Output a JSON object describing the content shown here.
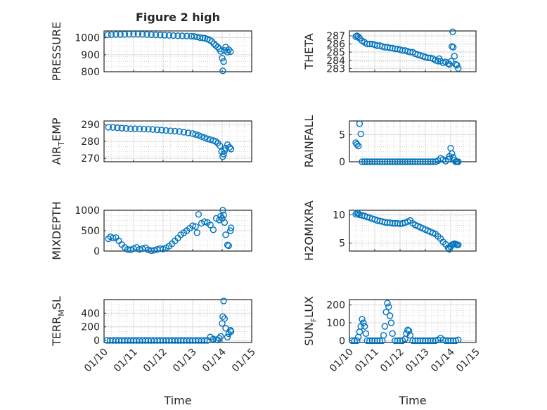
{
  "figure_title": "Figure 2 high",
  "colors": {
    "marker": "#0072BD",
    "axis": "#262626",
    "grid": "#dcdcdc",
    "minor_grid": "#bdbdbd"
  },
  "chart_data": [
    {
      "type": "scatter",
      "panel": "pressure",
      "title": "Figure 2 high",
      "ylabel": "PRESSURE",
      "xlabel": "",
      "ylim": [
        800,
        1040
      ],
      "yticks": [
        800,
        900,
        1000
      ],
      "xlim": [
        0,
        5
      ],
      "x": [
        0.12,
        0.25,
        0.4,
        0.55,
        0.7,
        0.85,
        1.0,
        1.15,
        1.3,
        1.45,
        1.6,
        1.75,
        1.9,
        2.05,
        2.2,
        2.35,
        2.5,
        2.65,
        2.8,
        2.95,
        3.05,
        3.15,
        3.25,
        3.35,
        3.42,
        3.5,
        3.58,
        3.65,
        3.72,
        3.78,
        3.85,
        3.9,
        3.95,
        4.0,
        4.02,
        4.05,
        4.08,
        4.12,
        4.18,
        4.22,
        4.28
      ],
      "y": [
        1018,
        1018,
        1019,
        1019,
        1020,
        1021,
        1021,
        1021,
        1020,
        1019,
        1018,
        1017,
        1016,
        1015,
        1014,
        1013,
        1012,
        1011,
        1010,
        1009,
        1008,
        1005,
        1001,
        999,
        997,
        992,
        986,
        978,
        965,
        955,
        945,
        935,
        920,
        880,
        805,
        860,
        925,
        945,
        915,
        930,
        918
      ]
    },
    {
      "type": "scatter",
      "panel": "theta",
      "ylabel": "THETA",
      "xlabel": "",
      "ylim": [
        282.6,
        287.6
      ],
      "yticks": [
        283,
        284,
        285,
        286,
        287
      ],
      "xlim": [
        0,
        5
      ],
      "x": [
        0.25,
        0.3,
        0.35,
        0.4,
        0.5,
        0.6,
        0.7,
        0.8,
        0.9,
        1.0,
        1.1,
        1.2,
        1.3,
        1.4,
        1.5,
        1.6,
        1.7,
        1.8,
        1.9,
        2.0,
        2.1,
        2.2,
        2.3,
        2.4,
        2.5,
        2.6,
        2.7,
        2.8,
        2.9,
        3.0,
        3.1,
        3.2,
        3.3,
        3.4,
        3.5,
        3.55,
        3.6,
        3.7,
        3.8,
        3.9,
        3.95,
        4.02,
        4.05,
        4.08,
        4.1,
        4.15,
        4.2,
        4.25,
        4.3
      ],
      "y": [
        286.9,
        287.0,
        286.9,
        286.7,
        286.4,
        286.2,
        286.0,
        286.0,
        286.0,
        285.9,
        285.8,
        285.8,
        285.7,
        285.6,
        285.6,
        285.5,
        285.5,
        285.4,
        285.4,
        285.3,
        285.2,
        285.2,
        285.1,
        285.0,
        285.0,
        284.8,
        284.7,
        284.6,
        284.5,
        284.4,
        284.3,
        284.3,
        284.2,
        284.0,
        283.9,
        284.2,
        283.9,
        283.7,
        283.8,
        283.6,
        283.5,
        283.9,
        285.7,
        287.5,
        285.6,
        284.5,
        283.5,
        283.4,
        283.0
      ]
    },
    {
      "type": "scatter",
      "panel": "air_temp",
      "ylabel_parts": [
        "AIR",
        "T",
        "EMP"
      ],
      "ylabel": "AIR_TEMP",
      "xlabel": "",
      "ylim": [
        268,
        292
      ],
      "yticks": [
        270,
        280,
        290
      ],
      "xlim": [
        0,
        5
      ],
      "x": [
        0.15,
        0.3,
        0.45,
        0.6,
        0.75,
        0.9,
        1.05,
        1.2,
        1.35,
        1.5,
        1.65,
        1.8,
        1.95,
        2.1,
        2.25,
        2.4,
        2.55,
        2.7,
        2.85,
        3.0,
        3.1,
        3.2,
        3.3,
        3.4,
        3.5,
        3.6,
        3.7,
        3.78,
        3.85,
        3.92,
        3.98,
        4.02,
        4.05,
        4.08,
        4.12,
        4.18,
        4.25,
        4.3
      ],
      "y": [
        288.3,
        288.2,
        288.0,
        287.8,
        287.6,
        287.4,
        287.4,
        287.3,
        287.2,
        287.1,
        287.0,
        286.8,
        286.6,
        286.4,
        286.2,
        286.0,
        285.8,
        285.4,
        285.0,
        284.6,
        284.0,
        283.5,
        282.8,
        282.2,
        281.5,
        281.0,
        280.5,
        280.0,
        279.0,
        277.5,
        274.0,
        271.0,
        272.5,
        274.5,
        276.0,
        278.0,
        276.5,
        275.5
      ]
    },
    {
      "type": "scatter",
      "panel": "rainfall",
      "ylabel": "RAINFALL",
      "xlabel": "",
      "ylim": [
        0,
        7.5
      ],
      "yticks": [
        0,
        5
      ],
      "xlim": [
        0,
        5
      ],
      "x": [
        0.25,
        0.3,
        0.35,
        0.4,
        0.45,
        0.5,
        0.6,
        0.7,
        0.8,
        0.9,
        1.0,
        1.1,
        1.2,
        1.3,
        1.4,
        1.5,
        1.6,
        1.7,
        1.8,
        1.9,
        2.0,
        2.1,
        2.2,
        2.3,
        2.4,
        2.5,
        2.6,
        2.7,
        2.8,
        2.9,
        3.0,
        3.1,
        3.2,
        3.3,
        3.4,
        3.5,
        3.6,
        3.7,
        3.8,
        3.9,
        3.95,
        4.0,
        4.05,
        4.1,
        4.15,
        4.2,
        4.25,
        4.3
      ],
      "y": [
        3.5,
        3.2,
        2.9,
        7.0,
        5.1,
        0,
        0,
        0,
        0,
        0,
        0,
        0,
        0,
        0,
        0,
        0,
        0,
        0,
        0,
        0,
        0,
        0,
        0,
        0,
        0,
        0,
        0,
        0,
        0,
        0,
        0,
        0,
        0,
        0,
        0,
        0.2,
        0.6,
        0.4,
        0.1,
        0.5,
        1.0,
        2.5,
        1.5,
        0.8,
        0.3,
        0,
        0,
        0
      ]
    },
    {
      "type": "scatter",
      "panel": "mixdepth",
      "ylabel": "MIXDEPTH",
      "xlabel": "",
      "ylim": [
        0,
        1000
      ],
      "yticks": [
        0,
        500,
        1000
      ],
      "xlim": [
        0,
        5
      ],
      "x": [
        0.15,
        0.22,
        0.3,
        0.4,
        0.5,
        0.6,
        0.7,
        0.8,
        0.9,
        1.0,
        1.1,
        1.2,
        1.3,
        1.4,
        1.5,
        1.6,
        1.7,
        1.8,
        1.9,
        2.0,
        2.1,
        2.2,
        2.3,
        2.4,
        2.5,
        2.6,
        2.7,
        2.8,
        2.9,
        3.0,
        3.1,
        3.15,
        3.2,
        3.3,
        3.4,
        3.5,
        3.6,
        3.7,
        3.8,
        3.9,
        3.95,
        4.0,
        4.02,
        4.05,
        4.08,
        4.12,
        4.18,
        4.22,
        4.28,
        4.3
      ],
      "y": [
        300,
        350,
        320,
        330,
        250,
        160,
        90,
        40,
        30,
        60,
        90,
        40,
        60,
        80,
        30,
        10,
        20,
        40,
        60,
        50,
        80,
        120,
        180,
        250,
        320,
        400,
        450,
        500,
        560,
        620,
        600,
        450,
        900,
        680,
        720,
        700,
        640,
        520,
        800,
        760,
        850,
        800,
        1000,
        880,
        700,
        400,
        150,
        130,
        500,
        570
      ]
    },
    {
      "type": "scatter",
      "panel": "h2omixra",
      "ylabel": "H2OMIXRA",
      "xlabel": "",
      "ylim": [
        3.6,
        10.8
      ],
      "yticks": [
        5,
        10
      ],
      "xlim": [
        0,
        5
      ],
      "x": [
        0.25,
        0.3,
        0.35,
        0.4,
        0.5,
        0.6,
        0.7,
        0.8,
        0.9,
        1.0,
        1.1,
        1.2,
        1.3,
        1.4,
        1.5,
        1.6,
        1.7,
        1.8,
        1.9,
        2.0,
        2.1,
        2.2,
        2.3,
        2.4,
        2.5,
        2.6,
        2.7,
        2.8,
        2.9,
        3.0,
        3.1,
        3.2,
        3.3,
        3.4,
        3.5,
        3.6,
        3.7,
        3.8,
        3.9,
        3.95,
        4.0,
        4.05,
        4.1,
        4.15,
        4.2,
        4.25,
        4.3
      ],
      "y": [
        10.1,
        10.3,
        10.2,
        10.0,
        9.9,
        9.8,
        9.6,
        9.5,
        9.3,
        9.2,
        9.0,
        8.9,
        8.8,
        8.7,
        8.6,
        8.6,
        8.5,
        8.5,
        8.5,
        8.4,
        8.5,
        8.6,
        8.8,
        9.0,
        8.5,
        8.2,
        8.0,
        7.8,
        7.6,
        7.4,
        7.2,
        7.0,
        6.8,
        6.6,
        6.2,
        5.8,
        5.2,
        4.8,
        4.2,
        3.9,
        4.4,
        4.7,
        4.8,
        4.9,
        4.8,
        4.7,
        4.7
      ]
    },
    {
      "type": "scatter",
      "panel": "terr_msl",
      "ylabel_parts": [
        "TERR",
        "M",
        "SL"
      ],
      "ylabel": "TERR_MSL",
      "xlabel": "Time",
      "ylim": [
        -30,
        600
      ],
      "yticks": [
        0,
        200,
        400
      ],
      "xlim": [
        0,
        5
      ],
      "xticks": [
        "01/10",
        "01/11",
        "01/12",
        "01/13",
        "01/14",
        "01/15"
      ],
      "x": [
        0.1,
        0.2,
        0.3,
        0.4,
        0.5,
        0.6,
        0.7,
        0.8,
        0.9,
        1.0,
        1.1,
        1.2,
        1.3,
        1.4,
        1.5,
        1.6,
        1.7,
        1.8,
        1.9,
        2.0,
        2.1,
        2.2,
        2.3,
        2.4,
        2.5,
        2.6,
        2.7,
        2.8,
        2.9,
        3.0,
        3.1,
        3.2,
        3.3,
        3.4,
        3.5,
        3.6,
        3.7,
        3.8,
        3.85,
        3.9,
        3.95,
        4.0,
        4.02,
        4.05,
        4.08,
        4.12,
        4.18,
        4.22,
        4.28,
        4.3
      ],
      "y": [
        0,
        0,
        0,
        0,
        0,
        0,
        0,
        0,
        0,
        0,
        0,
        0,
        0,
        0,
        0,
        0,
        0,
        0,
        0,
        0,
        0,
        0,
        0,
        0,
        0,
        0,
        0,
        0,
        0,
        0,
        0,
        0,
        0,
        0,
        0,
        50,
        20,
        10,
        5,
        30,
        60,
        250,
        350,
        580,
        320,
        180,
        50,
        100,
        150,
        130
      ]
    },
    {
      "type": "scatter",
      "panel": "sun_flux",
      "ylabel_parts": [
        "SUN",
        "F",
        "LUX"
      ],
      "ylabel": "SUN_FLUX",
      "xlabel": "Time",
      "ylim": [
        -10,
        230
      ],
      "yticks": [
        0,
        100,
        200
      ],
      "xlim": [
        0,
        5
      ],
      "xticks": [
        "01/10",
        "01/11",
        "01/12",
        "01/13",
        "01/14",
        "01/15"
      ],
      "x": [
        0.1,
        0.2,
        0.3,
        0.35,
        0.4,
        0.45,
        0.5,
        0.55,
        0.6,
        0.65,
        0.7,
        0.8,
        0.9,
        1.0,
        1.1,
        1.2,
        1.3,
        1.35,
        1.4,
        1.45,
        1.5,
        1.55,
        1.6,
        1.65,
        1.7,
        1.8,
        1.9,
        2.0,
        2.1,
        2.2,
        2.25,
        2.3,
        2.35,
        2.4,
        2.5,
        2.6,
        2.7,
        2.8,
        2.9,
        3.0,
        3.1,
        3.2,
        3.3,
        3.4,
        3.5,
        3.6,
        3.7,
        3.8,
        3.9,
        4.0,
        4.1,
        4.2,
        4.3
      ],
      "y": [
        0,
        0,
        0,
        20,
        50,
        80,
        120,
        100,
        80,
        40,
        0,
        0,
        0,
        0,
        0,
        0,
        0,
        30,
        80,
        160,
        210,
        190,
        140,
        100,
        40,
        0,
        0,
        0,
        0,
        10,
        40,
        60,
        55,
        30,
        0,
        0,
        0,
        0,
        0,
        0,
        0,
        0,
        0,
        0,
        5,
        15,
        5,
        0,
        0,
        0,
        0,
        0,
        5
      ]
    }
  ]
}
